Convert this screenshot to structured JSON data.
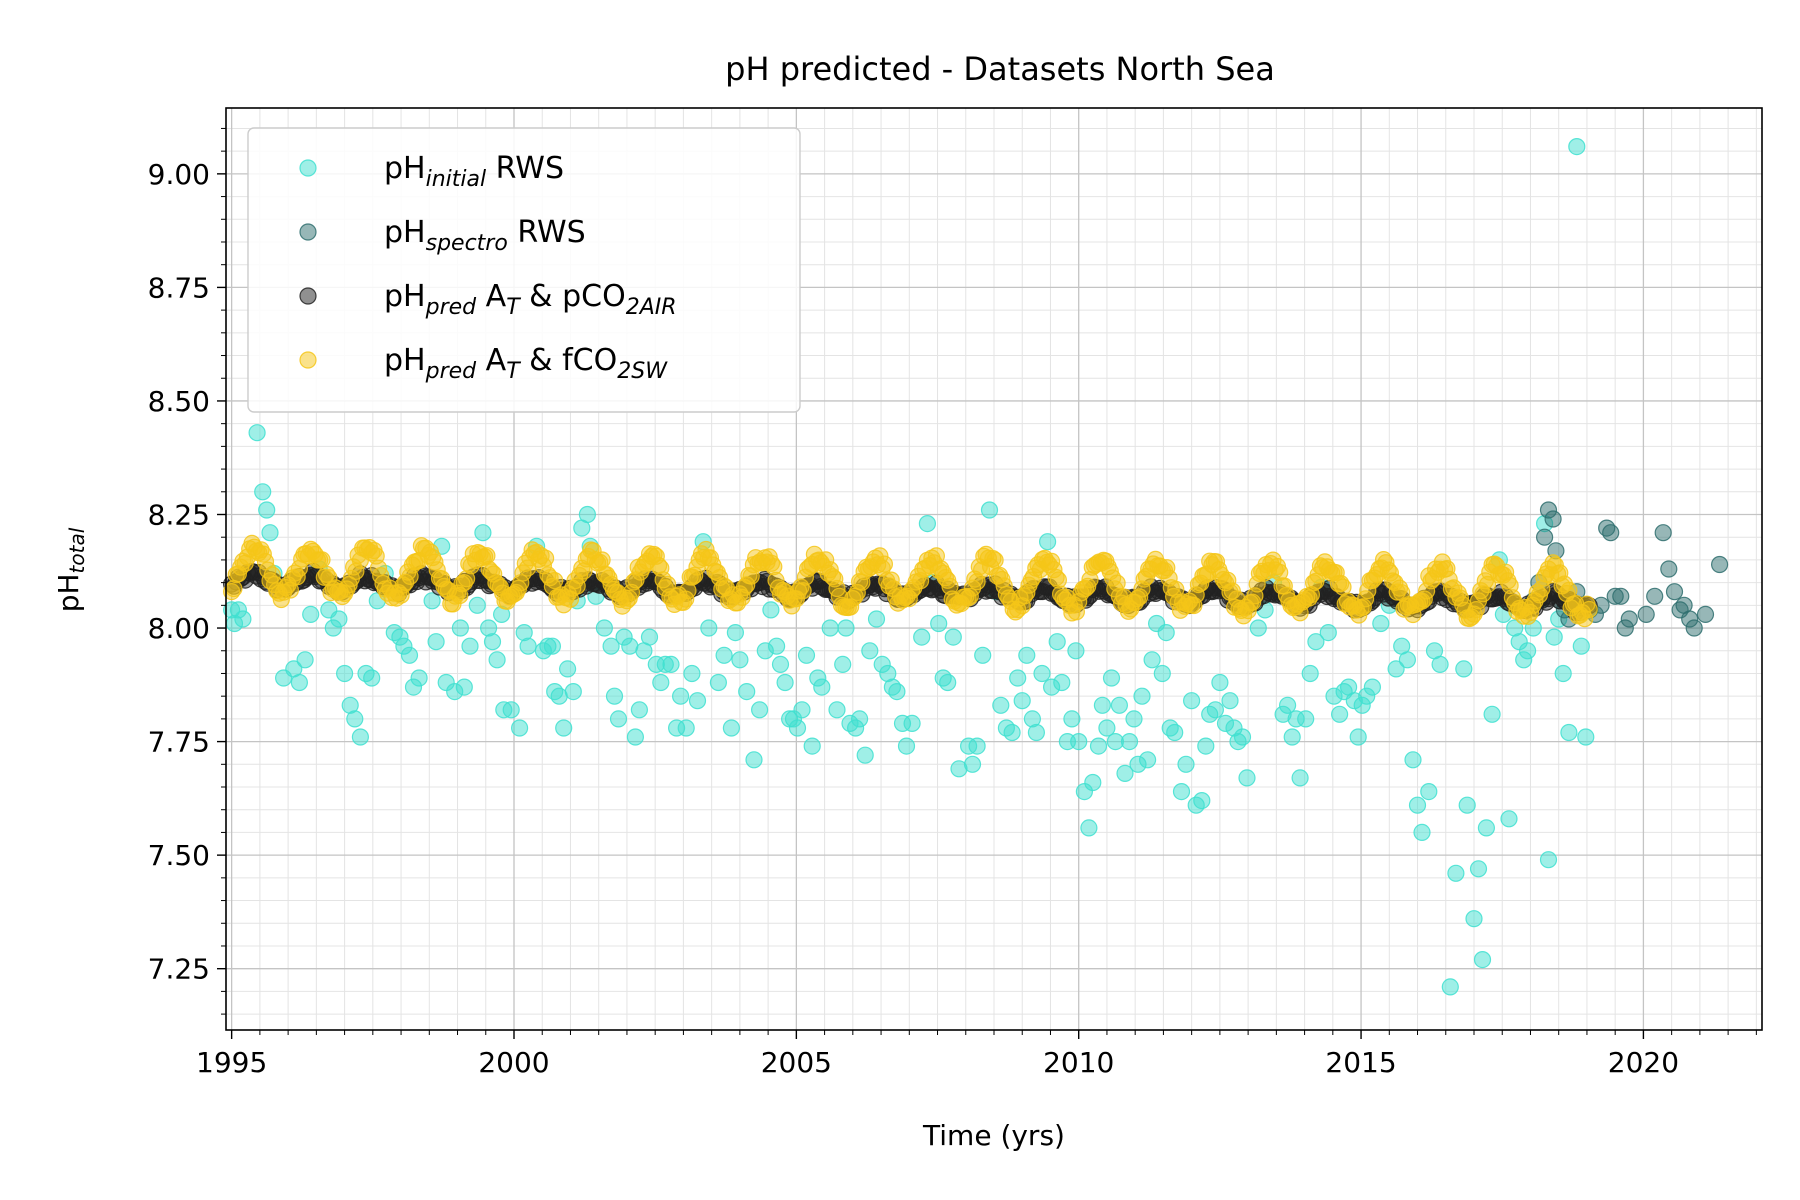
{
  "chart_data": {
    "type": "scatter",
    "title": "pH predicted - Datasets North Sea",
    "xlabel": "Time (yrs)",
    "ylabel": {
      "base": "pH",
      "sub": "total"
    },
    "xlim": [
      1994.9,
      2022.1
    ],
    "ylim": [
      7.115,
      9.145
    ],
    "xticks": [
      1995,
      2000,
      2005,
      2010,
      2015,
      2020
    ],
    "xtick_labels": [
      "1995",
      "2000",
      "2005",
      "2010",
      "2015",
      "2020"
    ],
    "yticks": [
      7.25,
      7.5,
      7.75,
      8.0,
      8.25,
      8.5,
      8.75,
      9.0
    ],
    "ytick_labels": [
      "7.25",
      "7.50",
      "7.75",
      "8.00",
      "8.25",
      "8.50",
      "8.75",
      "9.00"
    ],
    "grid": true,
    "legend_position": "top-left",
    "series": [
      {
        "name": "pH initial RWS",
        "legend": {
          "base": "pH",
          "sub": "initial",
          "rest": " RWS"
        },
        "color": "#40e0d0",
        "points": [
          [
            1995.0,
            8.04
          ],
          [
            1995.05,
            8.01
          ],
          [
            1995.12,
            8.04
          ],
          [
            1995.2,
            8.02
          ],
          [
            1995.45,
            8.43
          ],
          [
            1995.55,
            8.3
          ],
          [
            1995.62,
            8.26
          ],
          [
            1995.68,
            8.21
          ],
          [
            1995.75,
            8.12
          ],
          [
            1995.92,
            7.89
          ],
          [
            1996.1,
            7.91
          ],
          [
            1996.2,
            7.88
          ],
          [
            1996.3,
            7.93
          ],
          [
            1996.4,
            8.03
          ],
          [
            1996.55,
            8.13
          ],
          [
            1996.72,
            8.04
          ],
          [
            1996.8,
            8.0
          ],
          [
            1996.9,
            8.02
          ],
          [
            1997.0,
            7.9
          ],
          [
            1997.1,
            7.83
          ],
          [
            1997.18,
            7.8
          ],
          [
            1997.28,
            7.76
          ],
          [
            1997.38,
            7.9
          ],
          [
            1997.48,
            7.89
          ],
          [
            1997.58,
            8.06
          ],
          [
            1997.72,
            8.12
          ],
          [
            1997.88,
            7.99
          ],
          [
            1997.98,
            7.98
          ],
          [
            1998.05,
            7.96
          ],
          [
            1998.15,
            7.94
          ],
          [
            1998.22,
            7.87
          ],
          [
            1998.32,
            7.89
          ],
          [
            1998.55,
            8.06
          ],
          [
            1998.62,
            7.97
          ],
          [
            1998.72,
            8.18
          ],
          [
            1998.8,
            7.88
          ],
          [
            1998.95,
            7.86
          ],
          [
            1999.05,
            8.0
          ],
          [
            1999.12,
            7.87
          ],
          [
            1999.22,
            7.96
          ],
          [
            1999.35,
            8.05
          ],
          [
            1999.45,
            8.21
          ],
          [
            1999.55,
            8.0
          ],
          [
            1999.62,
            7.97
          ],
          [
            1999.7,
            7.93
          ],
          [
            1999.78,
            8.03
          ],
          [
            1999.82,
            7.82
          ],
          [
            1999.95,
            7.82
          ],
          [
            2000.1,
            7.78
          ],
          [
            2000.18,
            7.99
          ],
          [
            2000.25,
            7.96
          ],
          [
            2000.4,
            8.18
          ],
          [
            2000.52,
            7.95
          ],
          [
            2000.6,
            7.96
          ],
          [
            2000.68,
            7.96
          ],
          [
            2000.72,
            7.86
          ],
          [
            2000.8,
            7.85
          ],
          [
            2000.88,
            7.78
          ],
          [
            2000.95,
            7.91
          ],
          [
            2001.05,
            7.86
          ],
          [
            2001.12,
            8.06
          ],
          [
            2001.2,
            8.22
          ],
          [
            2001.3,
            8.25
          ],
          [
            2001.35,
            8.18
          ],
          [
            2001.45,
            8.07
          ],
          [
            2001.6,
            8.0
          ],
          [
            2001.72,
            7.96
          ],
          [
            2001.78,
            7.85
          ],
          [
            2001.85,
            7.8
          ],
          [
            2001.95,
            7.98
          ],
          [
            2002.05,
            7.96
          ],
          [
            2002.15,
            7.76
          ],
          [
            2002.22,
            7.82
          ],
          [
            2002.3,
            7.95
          ],
          [
            2002.4,
            7.98
          ],
          [
            2002.52,
            7.92
          ],
          [
            2002.6,
            7.88
          ],
          [
            2002.68,
            7.92
          ],
          [
            2002.78,
            7.92
          ],
          [
            2002.88,
            7.78
          ],
          [
            2002.95,
            7.85
          ],
          [
            2003.05,
            7.78
          ],
          [
            2003.15,
            7.9
          ],
          [
            2003.25,
            7.84
          ],
          [
            2003.35,
            8.19
          ],
          [
            2003.45,
            8.0
          ],
          [
            2003.62,
            7.88
          ],
          [
            2003.72,
            7.94
          ],
          [
            2003.85,
            7.78
          ],
          [
            2003.92,
            7.99
          ],
          [
            2004.0,
            7.93
          ],
          [
            2004.12,
            7.86
          ],
          [
            2004.25,
            7.71
          ],
          [
            2004.35,
            7.82
          ],
          [
            2004.45,
            7.95
          ],
          [
            2004.55,
            8.04
          ],
          [
            2004.65,
            7.96
          ],
          [
            2004.72,
            7.92
          ],
          [
            2004.8,
            7.88
          ],
          [
            2004.88,
            7.8
          ],
          [
            2004.95,
            7.8
          ],
          [
            2005.02,
            7.78
          ],
          [
            2005.1,
            7.82
          ],
          [
            2005.18,
            7.94
          ],
          [
            2005.28,
            7.74
          ],
          [
            2005.38,
            7.89
          ],
          [
            2005.45,
            7.87
          ],
          [
            2005.6,
            8.0
          ],
          [
            2005.72,
            7.82
          ],
          [
            2005.82,
            7.92
          ],
          [
            2005.88,
            8.0
          ],
          [
            2005.95,
            7.79
          ],
          [
            2006.05,
            7.78
          ],
          [
            2006.12,
            7.8
          ],
          [
            2006.22,
            7.72
          ],
          [
            2006.3,
            7.95
          ],
          [
            2006.42,
            8.02
          ],
          [
            2006.52,
            7.92
          ],
          [
            2006.62,
            7.9
          ],
          [
            2006.7,
            7.87
          ],
          [
            2006.78,
            7.86
          ],
          [
            2006.88,
            7.79
          ],
          [
            2006.95,
            7.74
          ],
          [
            2007.05,
            7.79
          ],
          [
            2007.22,
            7.98
          ],
          [
            2007.32,
            8.23
          ],
          [
            2007.42,
            8.1
          ],
          [
            2007.52,
            8.01
          ],
          [
            2007.6,
            7.89
          ],
          [
            2007.68,
            7.88
          ],
          [
            2007.78,
            7.98
          ],
          [
            2007.88,
            7.69
          ],
          [
            2008.05,
            7.74
          ],
          [
            2008.12,
            7.7
          ],
          [
            2008.2,
            7.74
          ],
          [
            2008.3,
            7.94
          ],
          [
            2008.42,
            8.26
          ],
          [
            2008.55,
            8.08
          ],
          [
            2008.62,
            7.83
          ],
          [
            2008.72,
            7.78
          ],
          [
            2008.82,
            7.77
          ],
          [
            2008.92,
            7.89
          ],
          [
            2009.0,
            7.84
          ],
          [
            2009.08,
            7.94
          ],
          [
            2009.18,
            7.8
          ],
          [
            2009.25,
            7.77
          ],
          [
            2009.35,
            7.9
          ],
          [
            2009.45,
            8.19
          ],
          [
            2009.52,
            7.87
          ],
          [
            2009.62,
            7.97
          ],
          [
            2009.7,
            7.88
          ],
          [
            2009.8,
            7.75
          ],
          [
            2009.88,
            7.8
          ],
          [
            2009.95,
            7.95
          ],
          [
            2010.0,
            7.75
          ],
          [
            2010.1,
            7.64
          ],
          [
            2010.18,
            7.56
          ],
          [
            2010.25,
            7.66
          ],
          [
            2010.35,
            7.74
          ],
          [
            2010.42,
            7.83
          ],
          [
            2010.5,
            7.78
          ],
          [
            2010.58,
            7.89
          ],
          [
            2010.65,
            7.75
          ],
          [
            2010.72,
            7.83
          ],
          [
            2010.82,
            7.68
          ],
          [
            2010.9,
            7.75
          ],
          [
            2010.98,
            7.8
          ],
          [
            2011.05,
            7.7
          ],
          [
            2011.12,
            7.85
          ],
          [
            2011.22,
            7.71
          ],
          [
            2011.3,
            7.93
          ],
          [
            2011.38,
            8.01
          ],
          [
            2011.48,
            7.9
          ],
          [
            2011.55,
            7.99
          ],
          [
            2011.62,
            7.78
          ],
          [
            2011.7,
            7.77
          ],
          [
            2011.82,
            7.64
          ],
          [
            2011.9,
            7.7
          ],
          [
            2012.0,
            7.84
          ],
          [
            2012.08,
            7.61
          ],
          [
            2012.18,
            7.62
          ],
          [
            2012.25,
            7.74
          ],
          [
            2012.32,
            7.81
          ],
          [
            2012.42,
            7.82
          ],
          [
            2012.5,
            7.88
          ],
          [
            2012.6,
            7.79
          ],
          [
            2012.68,
            7.84
          ],
          [
            2012.75,
            7.78
          ],
          [
            2012.82,
            7.75
          ],
          [
            2012.9,
            7.76
          ],
          [
            2012.98,
            7.67
          ],
          [
            2013.18,
            8.0
          ],
          [
            2013.3,
            8.04
          ],
          [
            2013.45,
            8.1
          ],
          [
            2013.62,
            7.81
          ],
          [
            2013.7,
            7.83
          ],
          [
            2013.78,
            7.76
          ],
          [
            2013.85,
            7.8
          ],
          [
            2013.92,
            7.67
          ],
          [
            2014.02,
            7.8
          ],
          [
            2014.1,
            7.9
          ],
          [
            2014.2,
            7.97
          ],
          [
            2014.3,
            8.09
          ],
          [
            2014.42,
            7.99
          ],
          [
            2014.52,
            7.85
          ],
          [
            2014.62,
            7.81
          ],
          [
            2014.7,
            7.86
          ],
          [
            2014.78,
            7.87
          ],
          [
            2014.88,
            7.84
          ],
          [
            2014.95,
            7.76
          ],
          [
            2015.02,
            7.83
          ],
          [
            2015.1,
            7.85
          ],
          [
            2015.2,
            7.87
          ],
          [
            2015.35,
            8.01
          ],
          [
            2015.5,
            8.05
          ],
          [
            2015.62,
            7.91
          ],
          [
            2015.72,
            7.96
          ],
          [
            2015.82,
            7.93
          ],
          [
            2015.92,
            7.71
          ],
          [
            2016.0,
            7.61
          ],
          [
            2016.08,
            7.55
          ],
          [
            2016.2,
            7.64
          ],
          [
            2016.3,
            7.95
          ],
          [
            2016.4,
            7.92
          ],
          [
            2016.58,
            7.21
          ],
          [
            2016.68,
            7.46
          ],
          [
            2016.82,
            7.91
          ],
          [
            2016.88,
            7.61
          ],
          [
            2017.0,
            7.36
          ],
          [
            2017.08,
            7.47
          ],
          [
            2017.15,
            7.27
          ],
          [
            2017.22,
            7.56
          ],
          [
            2017.32,
            7.81
          ],
          [
            2017.45,
            8.15
          ],
          [
            2017.52,
            8.03
          ],
          [
            2017.62,
            7.58
          ],
          [
            2017.72,
            8.0
          ],
          [
            2017.8,
            7.97
          ],
          [
            2017.88,
            7.93
          ],
          [
            2017.95,
            7.95
          ],
          [
            2018.05,
            8.0
          ],
          [
            2018.15,
            8.06
          ],
          [
            2018.25,
            8.23
          ],
          [
            2018.32,
            7.49
          ],
          [
            2018.42,
            7.98
          ],
          [
            2018.5,
            8.02
          ],
          [
            2018.58,
            7.9
          ],
          [
            2018.68,
            7.77
          ],
          [
            2018.82,
            9.06
          ],
          [
            2018.9,
            7.96
          ],
          [
            2018.98,
            7.76
          ]
        ]
      },
      {
        "name": "pH spectro RWS",
        "legend": {
          "base": "pH",
          "sub": "spectro",
          "rest": " RWS"
        },
        "color": "#2f6f6f",
        "points": [
          [
            2018.05,
            8.06
          ],
          [
            2018.15,
            8.1
          ],
          [
            2018.25,
            8.2
          ],
          [
            2018.32,
            8.26
          ],
          [
            2018.4,
            8.24
          ],
          [
            2018.45,
            8.17
          ],
          [
            2018.52,
            8.06
          ],
          [
            2018.6,
            8.04
          ],
          [
            2018.68,
            8.02
          ],
          [
            2018.75,
            8.05
          ],
          [
            2018.82,
            8.08
          ],
          [
            2018.9,
            8.05
          ],
          [
            2019.05,
            8.04
          ],
          [
            2019.15,
            8.03
          ],
          [
            2019.25,
            8.05
          ],
          [
            2019.35,
            8.22
          ],
          [
            2019.42,
            8.21
          ],
          [
            2019.5,
            8.07
          ],
          [
            2019.6,
            8.07
          ],
          [
            2019.68,
            8.0
          ],
          [
            2019.75,
            8.02
          ],
          [
            2020.05,
            8.03
          ],
          [
            2020.2,
            8.07
          ],
          [
            2020.35,
            8.21
          ],
          [
            2020.45,
            8.13
          ],
          [
            2020.55,
            8.08
          ],
          [
            2020.65,
            8.04
          ],
          [
            2020.72,
            8.05
          ],
          [
            2020.82,
            8.02
          ],
          [
            2020.9,
            8.0
          ],
          [
            2021.1,
            8.03
          ],
          [
            2021.35,
            8.14
          ]
        ]
      },
      {
        "name": "pH pred AT & pCO2AIR",
        "legend": {
          "base": "pH",
          "sub": "pred",
          "rest": " A",
          "sub2": "T",
          "rest2": " & pCO",
          "sub3": "2AIR"
        },
        "color": "#222222",
        "model": {
          "start": 1995.0,
          "end": 2019.05,
          "step": 0.04,
          "mean_start": 8.105,
          "mean_end": 8.055,
          "amplitude": 0.014,
          "jitter": 0.01
        }
      },
      {
        "name": "pH pred AT & fCO2SW",
        "legend": {
          "base": "pH",
          "sub": "pred",
          "rest": " A",
          "sub2": "T",
          "rest2": " & fCO",
          "sub3": "2SW"
        },
        "color": "#f5c518",
        "model": {
          "start": 1995.0,
          "end": 2019.05,
          "step": 0.04,
          "mean_start": 8.125,
          "mean_end": 8.08,
          "amplitude": 0.05,
          "jitter": 0.015
        }
      }
    ]
  }
}
